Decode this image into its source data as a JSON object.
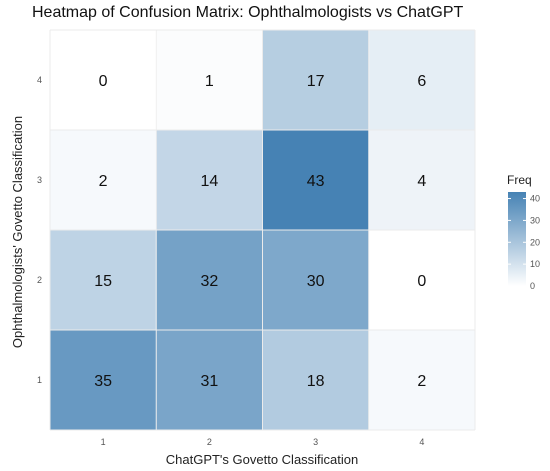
{
  "chart_data": {
    "type": "heatmap",
    "title": "Heatmap of Confusion Matrix: Ophthalmologists vs ChatGPT",
    "xlabel": "ChatGPT's Govetto Classification",
    "ylabel": "Ophthalmologists' Govetto Classification",
    "x_categories": [
      "1",
      "2",
      "3",
      "4"
    ],
    "y_categories": [
      "1",
      "2",
      "3",
      "4"
    ],
    "values": [
      [
        35,
        31,
        18,
        2
      ],
      [
        15,
        32,
        30,
        0
      ],
      [
        2,
        14,
        43,
        4
      ],
      [
        0,
        1,
        17,
        6
      ]
    ],
    "legend": {
      "title": "Freq",
      "ticks": [
        0,
        10,
        20,
        30,
        40
      ],
      "range": [
        0,
        43
      ],
      "low_color": "#ffffff",
      "high_color": "#4682b4",
      "placement": "right"
    },
    "grid": true
  }
}
